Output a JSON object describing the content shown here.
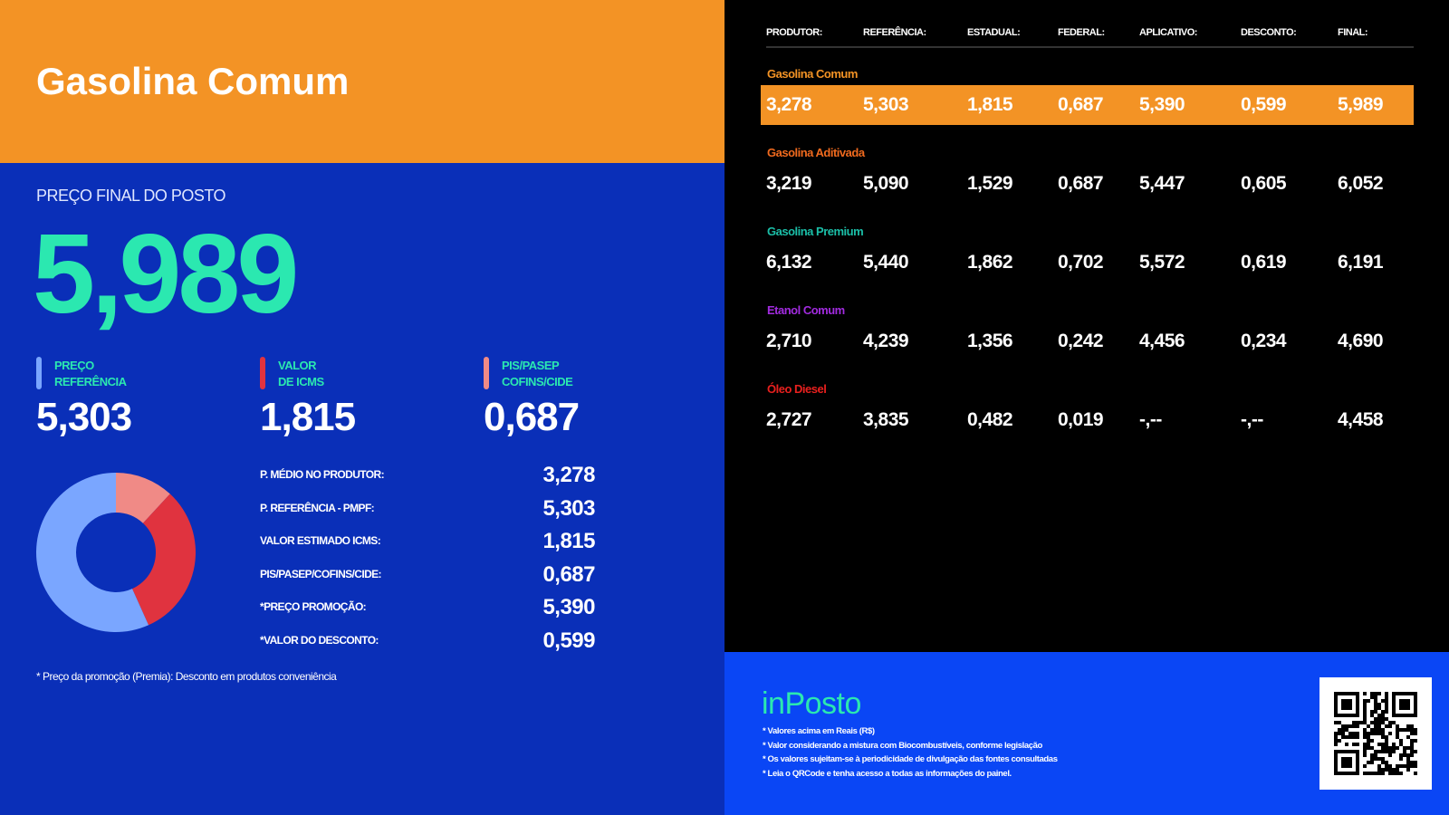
{
  "header": {
    "title": "Gasolina Comum"
  },
  "price": {
    "label": "PREÇO FINAL DO POSTO",
    "value": "5,989"
  },
  "kpis": [
    {
      "label1": "PREÇO",
      "label2": "REFERÊNCIA",
      "value": "5,303",
      "color": "#7aa6ff"
    },
    {
      "label1": "VALOR",
      "label2": "DE ICMS",
      "value": "1,815",
      "color": "#e0333f"
    },
    {
      "label1": "PIS/PASEP",
      "label2": "COFINS/CIDE",
      "value": "0,687",
      "color": "#f08a86"
    }
  ],
  "details": [
    {
      "label": "P. MÉDIO NO PRODUTOR:",
      "value": "3,278"
    },
    {
      "label": "P. REFERÊNCIA - PMPF:",
      "value": "5,303"
    },
    {
      "label": "VALOR ESTIMADO ICMS:",
      "value": "1,815"
    },
    {
      "label": "PIS/PASEP/COFINS/CIDE:",
      "value": "0,687"
    },
    {
      "label": "*PREÇO PROMOÇÃO:",
      "value": "5,390"
    },
    {
      "label": "*VALOR DO DESCONTO:",
      "value": "0,599"
    }
  ],
  "donut": [
    {
      "name": "produtor",
      "value": 3.278,
      "color": "#7aa6ff"
    },
    {
      "name": "icms",
      "value": 1.815,
      "color": "#e0333f"
    },
    {
      "name": "pis",
      "value": 0.687,
      "color": "#f08a86"
    }
  ],
  "note": "* Preço da promoção (Premia): Desconto em produtos conveniência",
  "table": {
    "headers": [
      "PRODUTOR:",
      "REFERÊNCIA:",
      "ESTADUAL:",
      "FEDERAL:",
      "APLICATIVO:",
      "DESCONTO:",
      "FINAL:"
    ],
    "rows": [
      {
        "name": "Gasolina Comum",
        "color": "#f39325",
        "values": [
          "3,278",
          "5,303",
          "1,815",
          "0,687",
          "5,390",
          "0,599",
          "5,989"
        ]
      },
      {
        "name": "Gasolina Aditivada",
        "color": "#f06a1e",
        "values": [
          "3,219",
          "5,090",
          "1,529",
          "0,687",
          "5,447",
          "0,605",
          "6,052"
        ]
      },
      {
        "name": "Gasolina Premium",
        "color": "#1bbfa8",
        "values": [
          "6,132",
          "5,440",
          "1,862",
          "0,702",
          "5,572",
          "0,619",
          "6,191"
        ]
      },
      {
        "name": "Etanol Comum",
        "color": "#a22be0",
        "values": [
          "2,710",
          "4,239",
          "1,356",
          "0,242",
          "4,456",
          "0,234",
          "4,690"
        ]
      },
      {
        "name": "Óleo Diesel",
        "color": "#e8201e",
        "values": [
          "2,727",
          "3,835",
          "0,482",
          "0,019",
          "-,--",
          "-,--",
          "4,458"
        ]
      }
    ]
  },
  "footer": {
    "logo": "inPosto",
    "notes": [
      "* Valores acima em Reais (R$)",
      "* Valor considerando a mistura com Biocombustíveis, conforme legislação",
      "* Os valores sujeitam-se à periodicidade de divulgação das fontes consultadas",
      "* Leia o QRCode e tenha acesso a todas as informações do painel."
    ]
  }
}
